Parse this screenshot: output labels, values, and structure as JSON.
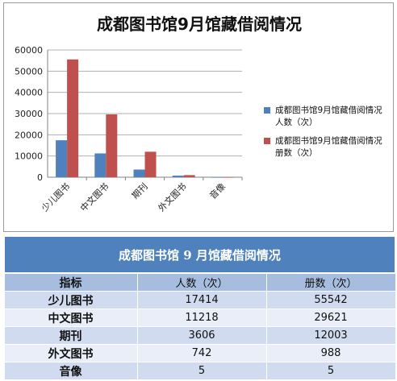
{
  "chart_data": {
    "type": "bar",
    "title": "成都图书馆9月馆藏借阅情况",
    "categories": [
      "少儿图书",
      "中文图书",
      "期刊",
      "外文图书",
      "音像"
    ],
    "series": [
      {
        "name": "成都图书馆9月馆藏借阅情况 人数（次）",
        "color": "#4f81bd",
        "values": [
          17414,
          11218,
          3606,
          742,
          5
        ]
      },
      {
        "name": "成都图书馆9月馆藏借阅情况 册数（次）",
        "color": "#c0504d",
        "values": [
          55542,
          29621,
          12003,
          988,
          5
        ]
      }
    ],
    "ylim": [
      0,
      60000
    ],
    "yticks": [
      0,
      10000,
      20000,
      30000,
      40000,
      50000,
      60000
    ],
    "grid": true,
    "legend": "right"
  },
  "table": {
    "title": "成都图书馆 9 月馆藏借阅情况",
    "headers": [
      "指标",
      "人数（次）",
      "册数（次）"
    ],
    "rows": [
      [
        "少儿图书",
        "17414",
        "55542"
      ],
      [
        "中文图书",
        "11218",
        "29621"
      ],
      [
        "期刊",
        "3606",
        "12003"
      ],
      [
        "外文图书",
        "742",
        "988"
      ],
      [
        "音像",
        "5",
        "5"
      ]
    ]
  }
}
